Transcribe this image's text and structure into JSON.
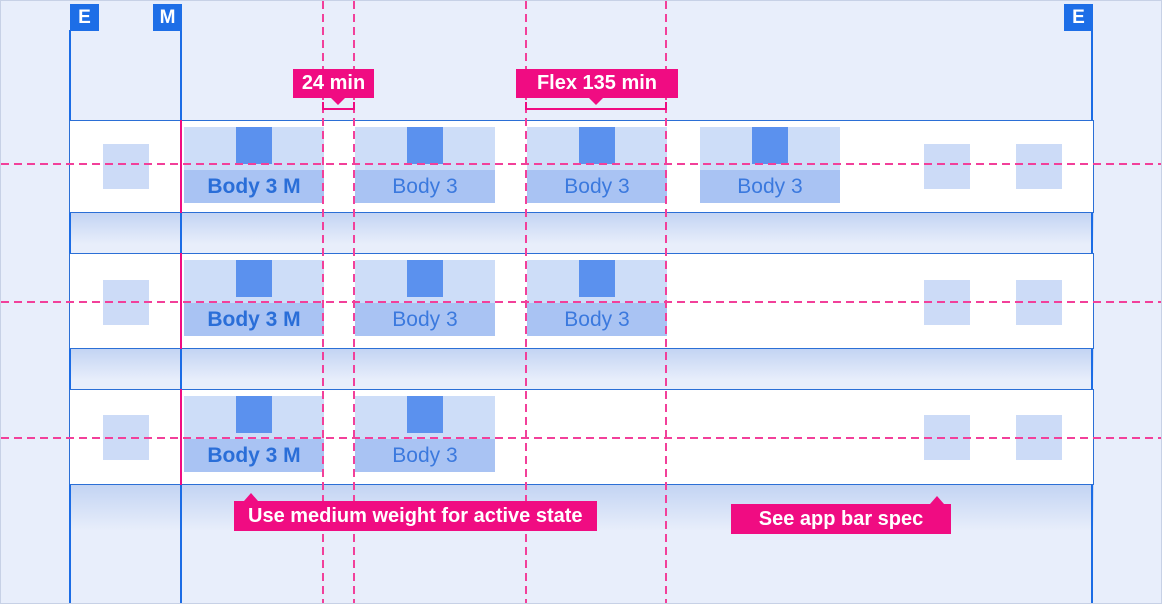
{
  "colors": {
    "accent_pink": "#F00C82",
    "guide_pink": "#F2409A",
    "keyline_blue": "#1B6CE5",
    "marker_blue": "#1D6EE7",
    "row_border_blue": "#2B6FD6",
    "canvas_bg": "#E8EEFB",
    "band_top": "#C3D4F3",
    "tab_icon_area_bg": "#CDDDF8",
    "tab_label_bg": "#A9C3F3",
    "tab_icon_fill": "#5B91EE",
    "placeholder_fill": "#CCDBF7",
    "active_text": "#2A6ED8",
    "inactive_text": "#3B79DE"
  },
  "markers": [
    {
      "label": "E"
    },
    {
      "label": "M"
    },
    {
      "label": "E"
    }
  ],
  "measurements": [
    {
      "label": "24 min"
    },
    {
      "label": "Flex 135 min"
    }
  ],
  "annotations": [
    {
      "label": "Use medium weight for active state"
    },
    {
      "label": "See app bar spec"
    }
  ],
  "tab_rows": [
    {
      "tabs": [
        {
          "label": "Body 3 M",
          "active": true
        },
        {
          "label": "Body 3",
          "active": false
        },
        {
          "label": "Body 3",
          "active": false
        },
        {
          "label": "Body 3",
          "active": false
        }
      ]
    },
    {
      "tabs": [
        {
          "label": "Body 3 M",
          "active": true
        },
        {
          "label": "Body 3",
          "active": false
        },
        {
          "label": "Body 3",
          "active": false
        }
      ]
    },
    {
      "tabs": [
        {
          "label": "Body 3 M",
          "active": true
        },
        {
          "label": "Body 3",
          "active": false
        }
      ]
    }
  ]
}
